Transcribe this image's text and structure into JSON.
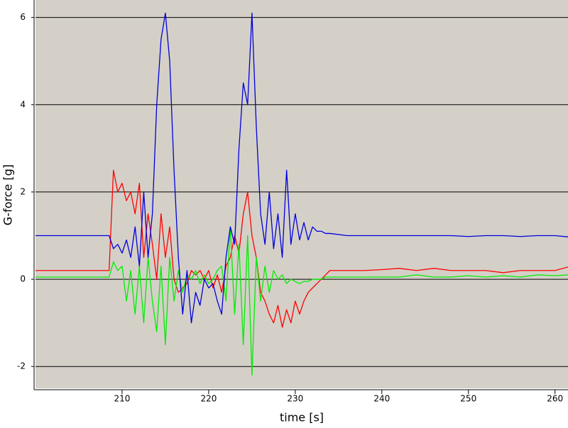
{
  "chart_data": {
    "type": "line",
    "x_label": "time [s]",
    "y_label": "G-force [g]",
    "x": [
      200,
      202,
      204,
      206,
      208,
      208.5,
      209,
      209.5,
      210,
      210.5,
      211,
      211.5,
      212,
      212.5,
      213,
      213.5,
      214,
      214.5,
      215,
      215.5,
      216,
      216.5,
      217,
      217.5,
      218,
      218.5,
      219,
      219.5,
      220,
      220.5,
      221,
      221.5,
      222,
      222.5,
      223,
      223.5,
      224,
      224.5,
      225,
      225.5,
      226,
      226.5,
      227,
      227.5,
      228,
      228.5,
      229,
      229.5,
      230,
      230.5,
      231,
      231.5,
      232,
      232.5,
      233,
      233.5,
      234,
      236,
      238,
      240,
      242,
      244,
      246,
      248,
      250,
      252,
      254,
      256,
      258,
      260,
      261.5
    ],
    "series": [
      {
        "color": "#ff0000",
        "values": [
          0.2,
          0.2,
          0.2,
          0.2,
          0.2,
          0.2,
          2.5,
          2.0,
          2.2,
          1.8,
          2.0,
          1.5,
          2.2,
          0.5,
          1.5,
          0.8,
          0.0,
          1.5,
          0.5,
          1.2,
          0.0,
          -0.3,
          -0.2,
          -0.1,
          0.2,
          0.1,
          0.2,
          0.0,
          0.2,
          -0.2,
          0.1,
          -0.3,
          0.3,
          0.5,
          1.0,
          0.6,
          1.5,
          2.0,
          1.0,
          0.5,
          -0.3,
          -0.5,
          -0.8,
          -1.0,
          -0.6,
          -1.1,
          -0.7,
          -1.0,
          -0.5,
          -0.8,
          -0.5,
          -0.3,
          -0.2,
          -0.1,
          0.0,
          0.1,
          0.2,
          0.2,
          0.2,
          0.22,
          0.25,
          0.2,
          0.25,
          0.2,
          0.2,
          0.2,
          0.15,
          0.2,
          0.2,
          0.2,
          0.28
        ]
      },
      {
        "color": "#00ee00",
        "values": [
          0.05,
          0.05,
          0.05,
          0.05,
          0.05,
          0.05,
          0.4,
          0.2,
          0.3,
          -0.5,
          0.2,
          -0.8,
          0.3,
          -1.0,
          0.5,
          -0.5,
          -1.2,
          0.3,
          -1.5,
          0.5,
          -0.5,
          0.2,
          -0.3,
          0.1,
          0.0,
          0.2,
          -0.1,
          0.1,
          -0.1,
          0.0,
          0.2,
          0.3,
          -0.5,
          1.2,
          -0.8,
          0.8,
          -1.5,
          1.0,
          -2.2,
          0.5,
          -0.5,
          0.3,
          -0.3,
          0.2,
          0.0,
          0.1,
          -0.1,
          0.0,
          -0.05,
          -0.1,
          -0.05,
          -0.05,
          0.0,
          0.0,
          0.0,
          0.05,
          0.05,
          0.05,
          0.05,
          0.05,
          0.05,
          0.1,
          0.05,
          0.05,
          0.08,
          0.05,
          0.08,
          0.05,
          0.1,
          0.08,
          0.1
        ]
      },
      {
        "color": "#0000dd",
        "values": [
          1.0,
          1.0,
          1.0,
          1.0,
          1.0,
          1.0,
          0.7,
          0.8,
          0.6,
          0.9,
          0.5,
          1.2,
          0.3,
          2.0,
          0.5,
          1.5,
          4.0,
          5.5,
          6.1,
          5.0,
          2.5,
          0.5,
          -0.8,
          0.2,
          -1.0,
          -0.3,
          -0.6,
          0.0,
          -0.2,
          -0.1,
          -0.5,
          -0.8,
          0.5,
          1.2,
          0.8,
          3.0,
          4.5,
          4.0,
          6.1,
          3.5,
          1.5,
          0.8,
          2.0,
          0.7,
          1.5,
          0.5,
          2.5,
          0.8,
          1.5,
          0.9,
          1.3,
          0.9,
          1.2,
          1.1,
          1.1,
          1.05,
          1.05,
          1.0,
          1.0,
          1.0,
          1.0,
          1.0,
          1.0,
          1.0,
          0.98,
          1.0,
          1.0,
          0.98,
          1.0,
          1.0,
          0.97
        ]
      }
    ],
    "xlim": [
      200,
      261.5
    ],
    "ylim": [
      -2.5,
      6.4
    ],
    "xticks": [
      210,
      220,
      230,
      240,
      250,
      260
    ],
    "yticks": [
      -2,
      0,
      2,
      4,
      6
    ],
    "grid": true,
    "background": "#d4d0c8"
  }
}
